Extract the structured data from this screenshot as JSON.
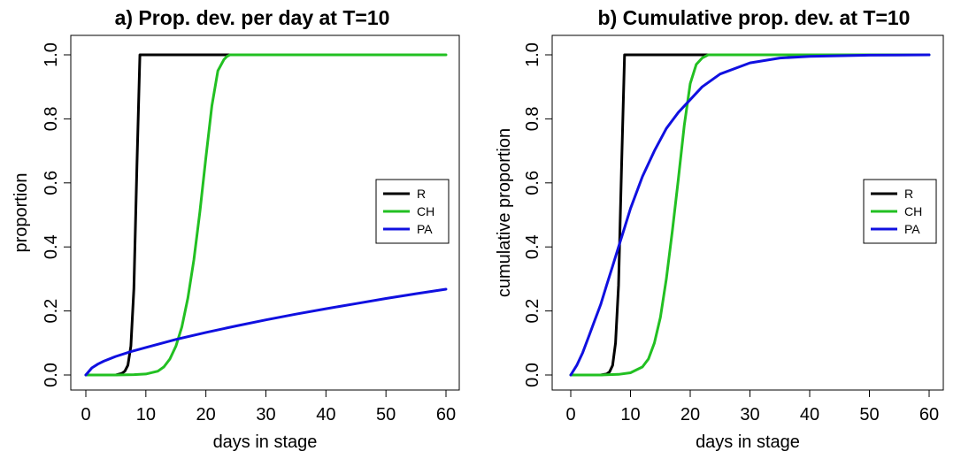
{
  "chart_data": [
    {
      "type": "line",
      "title": "a) Prop. dev. per day at T=10",
      "xlabel": "days in stage",
      "ylabel": "proportion",
      "xlim": [
        0,
        60
      ],
      "ylim": [
        0,
        1
      ],
      "xticks": [
        "0",
        "10",
        "20",
        "30",
        "40",
        "50",
        "60"
      ],
      "yticks": [
        "0.0",
        "0.2",
        "0.4",
        "0.6",
        "0.8",
        "1.0"
      ],
      "grid": false,
      "legend_position": "right",
      "series": [
        {
          "name": "R",
          "color": "#000000",
          "x": [
            0,
            1,
            2,
            3,
            4,
            5,
            6,
            6.5,
            7,
            7.5,
            8,
            8.5,
            9,
            10,
            15,
            20,
            24
          ],
          "y": [
            0,
            0,
            0,
            0,
            0,
            0,
            0.005,
            0.012,
            0.03,
            0.09,
            0.27,
            0.65,
            1.0,
            1.0,
            1.0,
            1.0,
            1.0
          ]
        },
        {
          "name": "CH",
          "color": "#22c022",
          "x": [
            0,
            5,
            8,
            10,
            12,
            13,
            14,
            15,
            16,
            17,
            18,
            19,
            20,
            21,
            22,
            23,
            23.5,
            24,
            25,
            30,
            40,
            50,
            60
          ],
          "y": [
            0,
            0,
            0.001,
            0.003,
            0.012,
            0.025,
            0.05,
            0.09,
            0.15,
            0.24,
            0.36,
            0.51,
            0.68,
            0.84,
            0.95,
            0.985,
            0.995,
            1.0,
            1.0,
            1.0,
            1.0,
            1.0,
            1.0
          ]
        },
        {
          "name": "PA",
          "color": "#1010e0",
          "x": [
            0,
            0.5,
            1,
            2,
            3,
            5,
            7.5,
            10,
            15,
            20,
            25,
            30,
            35,
            40,
            45,
            50,
            55,
            60
          ],
          "y": [
            0,
            0.011,
            0.022,
            0.034,
            0.043,
            0.058,
            0.073,
            0.086,
            0.111,
            0.133,
            0.153,
            0.172,
            0.19,
            0.207,
            0.223,
            0.239,
            0.254,
            0.268
          ]
        }
      ]
    },
    {
      "type": "line",
      "title": "b) Cumulative prop. dev. at T=10",
      "xlabel": "days in stage",
      "ylabel": "cumulative proportion",
      "xlim": [
        0,
        60
      ],
      "ylim": [
        0,
        1
      ],
      "xticks": [
        "0",
        "10",
        "20",
        "30",
        "40",
        "50",
        "60"
      ],
      "yticks": [
        "0.0",
        "0.2",
        "0.4",
        "0.6",
        "0.8",
        "1.0"
      ],
      "grid": false,
      "legend_position": "right",
      "series": [
        {
          "name": "R",
          "color": "#000000",
          "x": [
            0,
            3,
            5,
            6,
            6.5,
            7,
            7.5,
            8,
            8.5,
            9,
            10,
            15,
            20,
            23
          ],
          "y": [
            0,
            0,
            0,
            0.003,
            0.01,
            0.03,
            0.1,
            0.28,
            0.65,
            1.0,
            1.0,
            1.0,
            1.0,
            1.0
          ]
        },
        {
          "name": "CH",
          "color": "#22c022",
          "x": [
            0,
            5,
            8,
            10,
            12,
            13,
            14,
            15,
            16,
            17,
            18,
            19,
            20,
            21,
            22,
            23,
            25,
            30,
            40,
            50,
            60
          ],
          "y": [
            0,
            0,
            0.002,
            0.007,
            0.025,
            0.05,
            0.1,
            0.18,
            0.3,
            0.45,
            0.61,
            0.78,
            0.91,
            0.97,
            0.99,
            1.0,
            1.0,
            1.0,
            1.0,
            1.0,
            1.0
          ]
        },
        {
          "name": "PA",
          "color": "#1010e0",
          "x": [
            0,
            1,
            2,
            3,
            4,
            5,
            6,
            7,
            8,
            9,
            10,
            12,
            14,
            16,
            18,
            20,
            22,
            25,
            30,
            35,
            40,
            50,
            60
          ],
          "y": [
            0,
            0.03,
            0.07,
            0.12,
            0.17,
            0.22,
            0.28,
            0.34,
            0.4,
            0.46,
            0.52,
            0.62,
            0.7,
            0.77,
            0.82,
            0.86,
            0.9,
            0.94,
            0.975,
            0.99,
            0.995,
            0.999,
            1.0
          ]
        }
      ]
    }
  ]
}
